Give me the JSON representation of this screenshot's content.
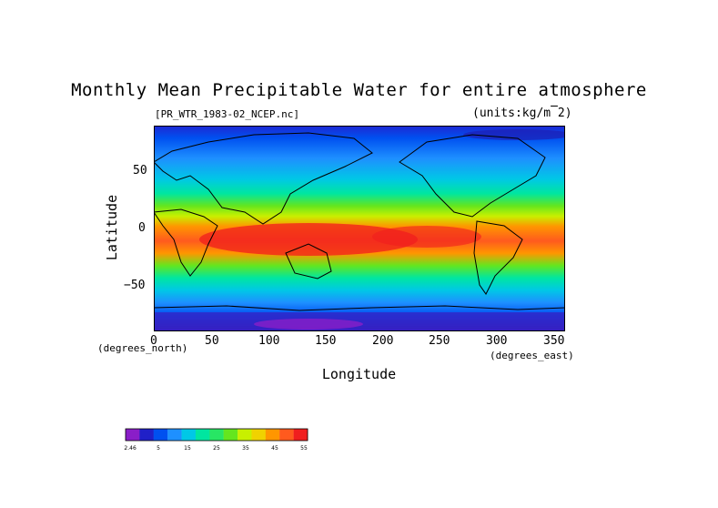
{
  "title": "Monthly Mean Precipitable Water for entire atmosphere",
  "file_label": "[PR_WTR_1983-02_NCEP.nc]",
  "units_label": "(units:kg/m¯E2)",
  "y_axis": {
    "label": "Latitude",
    "units": "(degrees_north)",
    "ticks": [
      "50",
      "0",
      "−50"
    ]
  },
  "x_axis": {
    "label": "Longitude",
    "units": "(degrees_east)",
    "ticks": [
      "0",
      "50",
      "100",
      "150",
      "200",
      "250",
      "300",
      "350"
    ]
  },
  "colorbar": {
    "labels": [
      "-2.46",
      "5",
      "15",
      "25",
      "35",
      "45",
      "55"
    ],
    "colors": [
      "#8a1ec8",
      "#2020c8",
      "#0050f0",
      "#1e90ff",
      "#00c8e6",
      "#00e6a0",
      "#28e664",
      "#64e61e",
      "#c8f000",
      "#f0d200",
      "#ff9600",
      "#ff5a1e",
      "#f01e1e"
    ]
  }
}
